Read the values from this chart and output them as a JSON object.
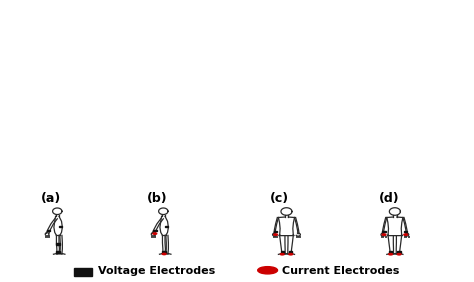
{
  "panels": [
    "(a)",
    "(b)",
    "(c)",
    "(d)"
  ],
  "background_color": "#ffffff",
  "body_color": "#2a2a2a",
  "voltage_color": "#111111",
  "current_color": "#cc0000",
  "legend_voltage_label": "Voltage Electrodes",
  "legend_current_label": "Current Electrodes",
  "title_fontsize": 9,
  "label_fontsize": 8,
  "lw": 0.9
}
